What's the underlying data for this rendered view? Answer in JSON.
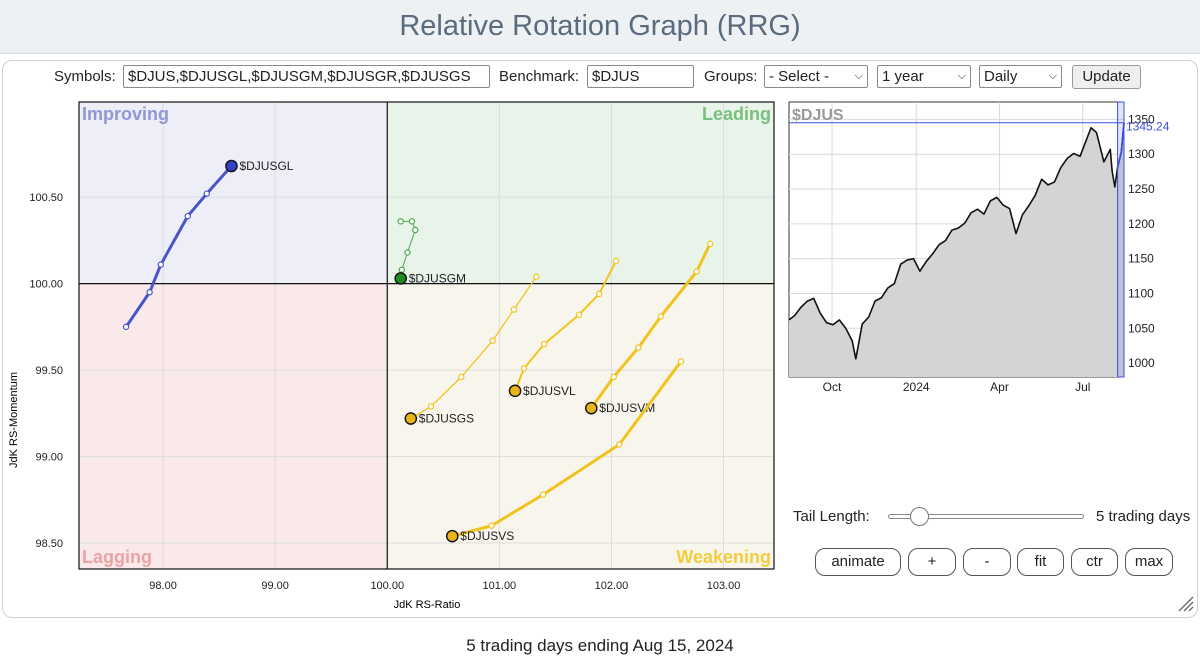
{
  "page": {
    "title": "Relative Rotation Graph (RRG)",
    "footer": "5 trading days ending Aug 15, 2024"
  },
  "controls": {
    "symbols_label": "Symbols:",
    "symbols_value": "$DJUS,$DJUSGL,$DJUSGM,$DJUSGR,$DJUSGS",
    "benchmark_label": "Benchmark:",
    "benchmark_value": "$DJUS",
    "groups_label": "Groups:",
    "groups_value": "- Select -",
    "period_value": "1 year",
    "interval_value": "Daily",
    "update_label": "Update"
  },
  "bottom_controls": {
    "tail_length_label": "Tail Length:",
    "tail_length_value": "5 trading days",
    "tail_length_fraction": 0.16,
    "buttons": {
      "animate": "animate",
      "plus": "+",
      "minus": "-",
      "fit": "fit",
      "ctr": "ctr",
      "max": "max"
    }
  },
  "chart_data": [
    {
      "type": "scatter",
      "variant": "relative-rotation-graph",
      "title": "",
      "xlabel": "JdK RS-Ratio",
      "ylabel": "JdK RS-Momentum",
      "xlim": [
        97.25,
        103.45
      ],
      "ylim": [
        98.35,
        101.05
      ],
      "xticks": [
        "98.00",
        "99.00",
        "100.00",
        "101.00",
        "102.00",
        "103.00"
      ],
      "yticks": [
        "98.50",
        "99.00",
        "99.50",
        "100.00",
        "100.50"
      ],
      "center": [
        100.0,
        100.0
      ],
      "quadrants": [
        {
          "name": "Improving",
          "position": "top-left",
          "fill": "#eeeef8",
          "color": "#8f97d6"
        },
        {
          "name": "Leading",
          "position": "top-right",
          "fill": "#e8f4ea",
          "color": "#79c07f"
        },
        {
          "name": "Lagging",
          "position": "bottom-left",
          "fill": "#f9e9ea",
          "color": "#eda2a6"
        },
        {
          "name": "Weakening",
          "position": "bottom-right",
          "fill": "#f8f6ec",
          "color": "#f2cd3c"
        }
      ],
      "series": [
        {
          "name": "$DJUSGL",
          "color": "#4a55c8",
          "head_color": "#3440c5",
          "line_width": 3,
          "points": [
            [
              97.67,
              99.75
            ],
            [
              97.88,
              99.95
            ],
            [
              97.98,
              100.11
            ],
            [
              98.22,
              100.39
            ],
            [
              98.39,
              100.52
            ],
            [
              98.61,
              100.68
            ]
          ]
        },
        {
          "name": "$DJUSGM",
          "color": "#4aa84a",
          "head_color": "#1f8a1f",
          "line_width": 1,
          "points": [
            [
              100.12,
              100.36
            ],
            [
              100.22,
              100.36
            ],
            [
              100.25,
              100.31
            ],
            [
              100.18,
              100.18
            ],
            [
              100.13,
              100.08
            ],
            [
              100.12,
              100.03
            ]
          ]
        },
        {
          "name": "$DJUSGS",
          "color": "#f2c31e",
          "head_color": "#e8b419",
          "line_width": 1.3,
          "points": [
            [
              101.33,
              100.04
            ],
            [
              101.13,
              99.85
            ],
            [
              100.94,
              99.67
            ],
            [
              100.66,
              99.46
            ],
            [
              100.39,
              99.29
            ],
            [
              100.21,
              99.22
            ]
          ]
        },
        {
          "name": "$DJUSVL",
          "color": "#f2c31e",
          "head_color": "#e8b419",
          "line_width": 2,
          "points": [
            [
              102.04,
              100.13
            ],
            [
              101.89,
              99.94
            ],
            [
              101.71,
              99.82
            ],
            [
              101.4,
              99.65
            ],
            [
              101.22,
              99.51
            ],
            [
              101.14,
              99.38
            ]
          ]
        },
        {
          "name": "$DJUSVM",
          "color": "#f2c31e",
          "head_color": "#e8b419",
          "line_width": 3,
          "points": [
            [
              102.88,
              100.23
            ],
            [
              102.76,
              100.07
            ],
            [
              102.44,
              99.81
            ],
            [
              102.24,
              99.63
            ],
            [
              102.02,
              99.46
            ],
            [
              101.82,
              99.28
            ]
          ]
        },
        {
          "name": "$DJUSVS",
          "color": "#f2c31e",
          "head_color": "#e8b419",
          "line_width": 3,
          "points": [
            [
              102.62,
              99.55
            ],
            [
              102.07,
              99.07
            ],
            [
              101.39,
              98.78
            ],
            [
              100.93,
              98.6
            ],
            [
              100.58,
              98.54
            ]
          ]
        }
      ]
    },
    {
      "type": "area",
      "symbol": "$DJUS",
      "last_value": "1345.24",
      "last_value_num": 1345.24,
      "yticks": [
        "1000",
        "1050",
        "1100",
        "1150",
        "1200",
        "1250",
        "1300",
        "1350"
      ],
      "ylim": [
        980,
        1375
      ],
      "xticks": [
        "Oct",
        "2024",
        "Apr",
        "Jul"
      ],
      "xtick_dates": [
        "2023-10-01",
        "2024-01-01",
        "2024-04-01",
        "2024-07-01"
      ],
      "xlim_dates": [
        "2023-08-15",
        "2024-08-15"
      ],
      "highlight_start": "2024-08-08",
      "series": [
        {
          "name": "$DJUS",
          "points": [
            [
              "2023-08-15",
              1062
            ],
            [
              "2023-08-21",
              1068
            ],
            [
              "2023-08-28",
              1080
            ],
            [
              "2023-09-04",
              1089
            ],
            [
              "2023-09-11",
              1093
            ],
            [
              "2023-09-18",
              1072
            ],
            [
              "2023-09-25",
              1058
            ],
            [
              "2023-10-02",
              1055
            ],
            [
              "2023-10-09",
              1062
            ],
            [
              "2023-10-16",
              1050
            ],
            [
              "2023-10-23",
              1032
            ],
            [
              "2023-10-27",
              1006
            ],
            [
              "2023-11-03",
              1056
            ],
            [
              "2023-11-10",
              1066
            ],
            [
              "2023-11-17",
              1089
            ],
            [
              "2023-11-24",
              1094
            ],
            [
              "2023-12-01",
              1108
            ],
            [
              "2023-12-08",
              1114
            ],
            [
              "2023-12-15",
              1142
            ],
            [
              "2023-12-22",
              1148
            ],
            [
              "2023-12-29",
              1150
            ],
            [
              "2024-01-05",
              1132
            ],
            [
              "2024-01-12",
              1146
            ],
            [
              "2024-01-19",
              1157
            ],
            [
              "2024-01-26",
              1170
            ],
            [
              "2024-02-02",
              1176
            ],
            [
              "2024-02-09",
              1191
            ],
            [
              "2024-02-16",
              1194
            ],
            [
              "2024-02-23",
              1201
            ],
            [
              "2024-03-01",
              1216
            ],
            [
              "2024-03-08",
              1221
            ],
            [
              "2024-03-15",
              1214
            ],
            [
              "2024-03-22",
              1233
            ],
            [
              "2024-03-29",
              1238
            ],
            [
              "2024-04-05",
              1227
            ],
            [
              "2024-04-12",
              1222
            ],
            [
              "2024-04-19",
              1186
            ],
            [
              "2024-04-26",
              1213
            ],
            [
              "2024-05-03",
              1226
            ],
            [
              "2024-05-10",
              1241
            ],
            [
              "2024-05-17",
              1264
            ],
            [
              "2024-05-24",
              1256
            ],
            [
              "2024-05-31",
              1260
            ],
            [
              "2024-06-07",
              1281
            ],
            [
              "2024-06-14",
              1294
            ],
            [
              "2024-06-21",
              1301
            ],
            [
              "2024-06-28",
              1297
            ],
            [
              "2024-07-05",
              1321
            ],
            [
              "2024-07-10",
              1338
            ],
            [
              "2024-07-16",
              1331
            ],
            [
              "2024-07-24",
              1289
            ],
            [
              "2024-07-31",
              1307
            ],
            [
              "2024-08-02",
              1276
            ],
            [
              "2024-08-05",
              1253
            ],
            [
              "2024-08-08",
              1281
            ],
            [
              "2024-08-12",
              1303
            ],
            [
              "2024-08-15",
              1345
            ]
          ]
        }
      ]
    }
  ]
}
